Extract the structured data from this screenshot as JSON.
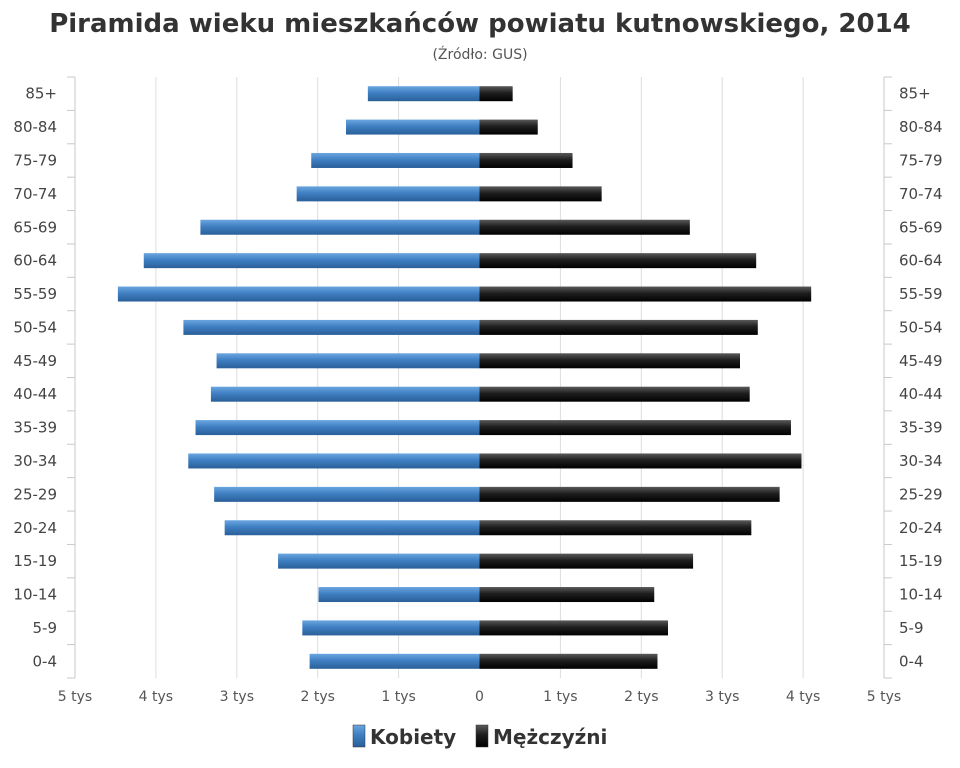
{
  "chart_data": {
    "type": "bar",
    "orientation": "horizontal-population-pyramid",
    "title": "Piramida wieku mieszkańców powiatu kutnowskiego, 2014",
    "subtitle": "(Źródło: GUS)",
    "categories": [
      "85+",
      "80-84",
      "75-79",
      "70-74",
      "65-69",
      "60-64",
      "55-59",
      "50-54",
      "45-49",
      "40-44",
      "35-39",
      "30-34",
      "25-29",
      "20-24",
      "15-19",
      "10-14",
      "5-9",
      "0-4"
    ],
    "series": [
      {
        "name": "Kobiety",
        "side": "left",
        "color": "#3f7fc2",
        "values": [
          1380,
          1650,
          2080,
          2260,
          3450,
          4150,
          4470,
          3660,
          3250,
          3320,
          3510,
          3600,
          3280,
          3150,
          2490,
          1990,
          2190,
          2100
        ]
      },
      {
        "name": "Mężczyźni",
        "side": "right",
        "color": "#1a1a1a",
        "values": [
          410,
          720,
          1150,
          1510,
          2600,
          3420,
          4100,
          3440,
          3220,
          3340,
          3850,
          3980,
          3710,
          3360,
          2640,
          2160,
          2330,
          2200
        ]
      }
    ],
    "xlim": [
      -5000,
      5000
    ],
    "x_ticks": [
      -5000,
      -4000,
      -3000,
      -2000,
      -1000,
      0,
      1000,
      2000,
      3000,
      4000,
      5000
    ],
    "x_tick_labels": [
      "5 tys",
      "4 tys",
      "3 tys",
      "2 tys",
      "1 tys",
      "0",
      "1 tys",
      "2 tys",
      "3 tys",
      "4 tys",
      "5 tys"
    ],
    "grid": true,
    "legend": "bottom-center"
  }
}
